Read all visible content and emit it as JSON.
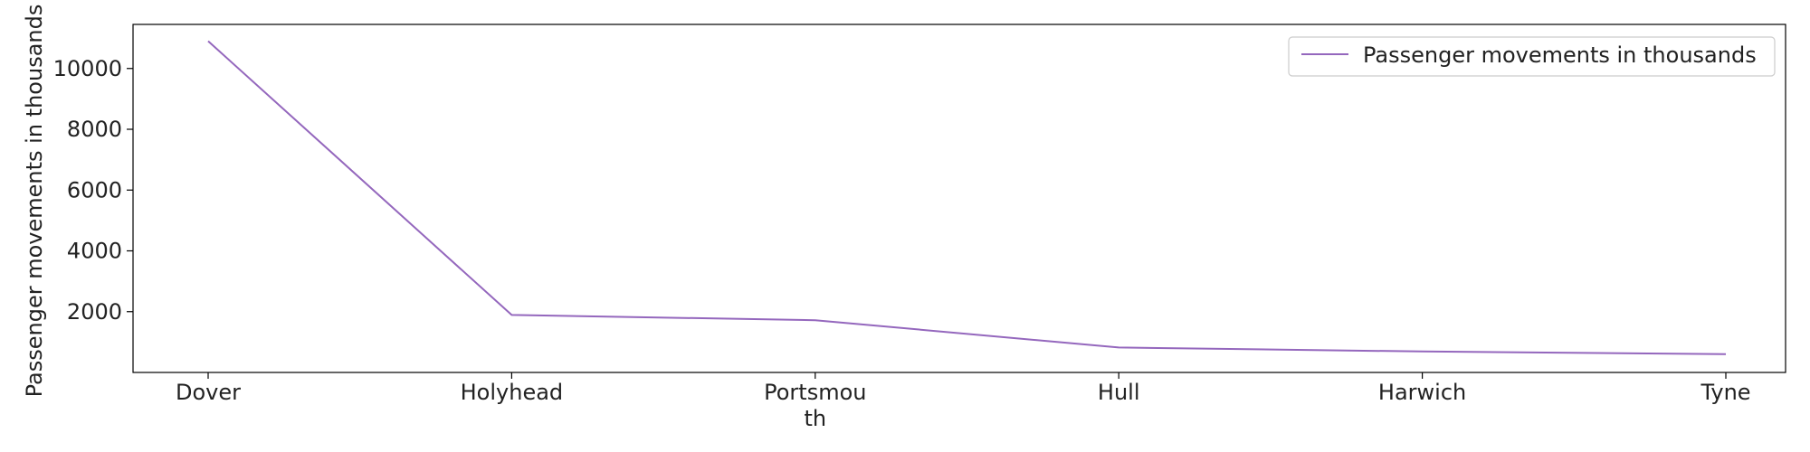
{
  "chart_data": {
    "type": "line",
    "categories": [
      "Dover",
      "Holyhead",
      "Portsmouth",
      "Hull",
      "Harwich",
      "Tyne"
    ],
    "category_display": [
      [
        "Dover"
      ],
      [
        "Holyhead"
      ],
      [
        "Portsmou",
        "th"
      ],
      [
        "Hull"
      ],
      [
        "Harwich"
      ],
      [
        "Tyne"
      ]
    ],
    "series": [
      {
        "name": "Passenger movements in thousands",
        "values": [
          10900,
          1890,
          1720,
          820,
          690,
          600
        ],
        "color": "#9467bd"
      }
    ],
    "ylabel": "Passenger movements in thousands",
    "xlabel": "",
    "yticks": [
      2000,
      4000,
      6000,
      8000,
      10000
    ],
    "ylim": [
      0,
      11450
    ],
    "grid": false,
    "legend": {
      "placement": "top-right"
    }
  }
}
